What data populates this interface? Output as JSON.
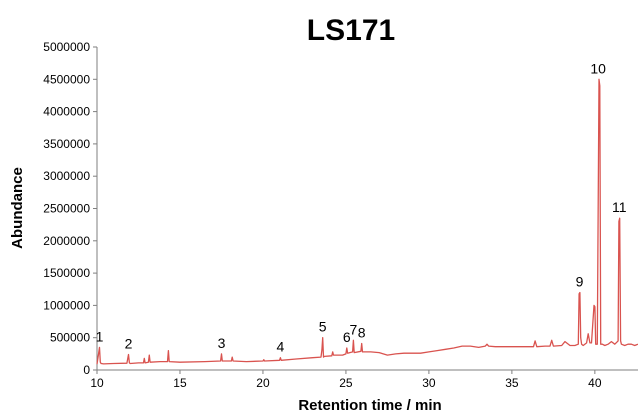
{
  "chart_data": {
    "type": "line",
    "title": "LS171",
    "xlabel": "Retention time / min",
    "ylabel": "Abundance",
    "xlim": [
      10,
      42.6
    ],
    "ylim": [
      0,
      5000000
    ],
    "x_ticks": [
      "10",
      "15",
      "20",
      "25",
      "30",
      "35",
      "40"
    ],
    "y_ticks": [
      "0",
      "500000",
      "1000000",
      "1500000",
      "2000000",
      "2500000",
      "3000000",
      "3500000",
      "4000000",
      "4500000",
      "5000000"
    ],
    "grid": false,
    "legend": "none",
    "series": [
      {
        "color": "#d9534f",
        "x": [
          10,
          10.15,
          10.2,
          10.25,
          10.4,
          11.0,
          11.8,
          11.9,
          11.95,
          12.0,
          12.5,
          12.8,
          12.85,
          12.9,
          13.1,
          13.15,
          13.2,
          13.8,
          14.25,
          14.3,
          14.35,
          15.0,
          16.5,
          17.45,
          17.5,
          17.55,
          18.1,
          18.15,
          18.2,
          19.0,
          20.0,
          20.05,
          20.1,
          21.0,
          21.05,
          21.1,
          22.0,
          23.0,
          23.5,
          23.55,
          23.6,
          23.65,
          23.7,
          24.15,
          24.2,
          24.25,
          24.8,
          25.0,
          25.05,
          25.1,
          25.4,
          25.45,
          25.5,
          25.9,
          25.95,
          26.0,
          26.5,
          27.0,
          27.5,
          28.0,
          28.5,
          29.0,
          29.5,
          30.0,
          30.5,
          31.0,
          31.5,
          32.0,
          32.5,
          33.0,
          33.4,
          33.5,
          33.6,
          34.0,
          34.5,
          35.0,
          35.5,
          36.0,
          36.3,
          36.4,
          36.5,
          37.0,
          37.3,
          37.4,
          37.5,
          38.0,
          38.2,
          38.5,
          38.8,
          39.0,
          39.05,
          39.1,
          39.15,
          39.2,
          39.3,
          39.5,
          39.6,
          39.7,
          39.8,
          39.95,
          40.0,
          40.05,
          40.15,
          40.25,
          40.3,
          40.35,
          40.45,
          40.6,
          40.8,
          41.0,
          41.2,
          41.4,
          41.45,
          41.5,
          41.55,
          41.6,
          41.8,
          42.0,
          42.2,
          42.4,
          42.6
        ],
        "y": [
          90000,
          350000,
          120000,
          100000,
          95000,
          100000,
          105000,
          240000,
          110000,
          100000,
          110000,
          110000,
          180000,
          110000,
          120000,
          230000,
          120000,
          130000,
          130000,
          300000,
          130000,
          120000,
          130000,
          140000,
          250000,
          140000,
          140000,
          200000,
          140000,
          130000,
          140000,
          160000,
          140000,
          150000,
          190000,
          150000,
          170000,
          190000,
          200000,
          310000,
          500000,
          200000,
          210000,
          220000,
          280000,
          230000,
          230000,
          250000,
          340000,
          260000,
          280000,
          460000,
          270000,
          290000,
          410000,
          280000,
          280000,
          270000,
          230000,
          250000,
          260000,
          260000,
          260000,
          280000,
          300000,
          320000,
          340000,
          370000,
          370000,
          350000,
          370000,
          400000,
          370000,
          360000,
          360000,
          360000,
          360000,
          360000,
          360000,
          450000,
          360000,
          370000,
          370000,
          460000,
          370000,
          380000,
          440000,
          380000,
          380000,
          400000,
          1180000,
          1200000,
          500000,
          400000,
          380000,
          420000,
          560000,
          420000,
          420000,
          1000000,
          980000,
          400000,
          400000,
          4500000,
          4400000,
          400000,
          400000,
          380000,
          400000,
          440000,
          400000,
          450000,
          2300000,
          2350000,
          450000,
          400000,
          380000,
          400000,
          400000,
          380000,
          400000
        ]
      }
    ],
    "peak_labels": [
      {
        "text": "1",
        "x": 10.15,
        "y": 350000
      },
      {
        "text": "2",
        "x": 11.9,
        "y": 240000
      },
      {
        "text": "3",
        "x": 17.5,
        "y": 250000
      },
      {
        "text": "4",
        "x": 21.05,
        "y": 190000
      },
      {
        "text": "5",
        "x": 23.6,
        "y": 500000
      },
      {
        "text": "6",
        "x": 25.05,
        "y": 340000
      },
      {
        "text": "7",
        "x": 25.45,
        "y": 460000
      },
      {
        "text": "8",
        "x": 25.95,
        "y": 410000
      },
      {
        "text": "9",
        "x": 39.08,
        "y": 1200000
      },
      {
        "text": "10",
        "x": 40.2,
        "y": 4500000
      },
      {
        "text": "11",
        "x": 41.47,
        "y": 2350000
      }
    ]
  }
}
